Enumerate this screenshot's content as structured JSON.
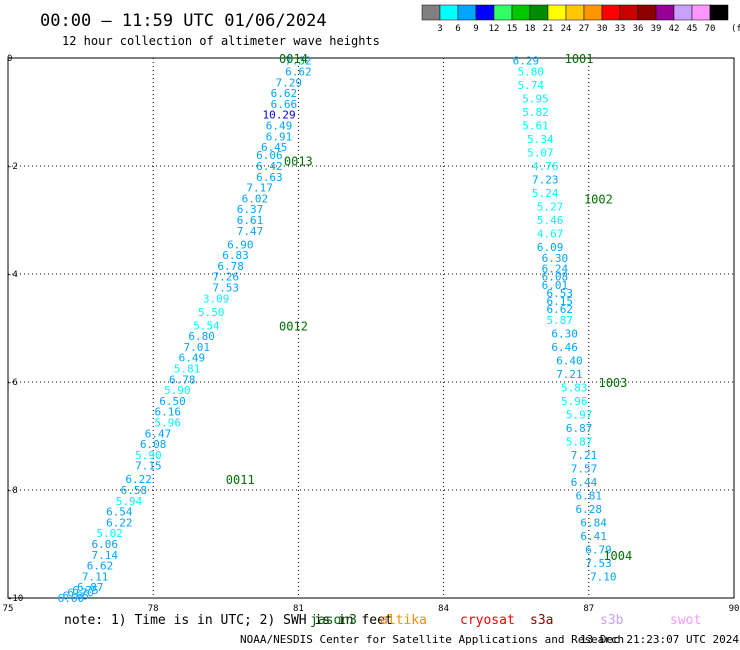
{
  "header": {
    "title": "00:00 – 11:59 UTC 01/06/2024",
    "subtitle": "12 hour collection of altimeter wave heights"
  },
  "colorbar": {
    "ticks": [
      "3",
      "6",
      "9",
      "12",
      "15",
      "18",
      "21",
      "24",
      "27",
      "30",
      "33",
      "36",
      "39",
      "42",
      "45",
      "70"
    ],
    "unit": "(ft)",
    "colors": [
      "#808080",
      "#00ffff",
      "#00a5ff",
      "#0000ff",
      "#32ff64",
      "#00c800",
      "#008c00",
      "#ffff00",
      "#ffc800",
      "#ff9600",
      "#ff0000",
      "#c80000",
      "#8c0000",
      "#960096",
      "#c8a0ff",
      "#ff96ff",
      "#000000"
    ]
  },
  "note": "note: 1) Time is in UTC; 2) SWH is in feet",
  "missions": [
    {
      "name": "jason3",
      "color": "#006400"
    },
    {
      "name": "altika",
      "color": "#ff8c00"
    },
    {
      "name": "cryosat",
      "color": "#ff0000"
    },
    {
      "name": "s3a",
      "color": "#8b0000"
    },
    {
      "name": "s3b",
      "color": "#c8a0ff"
    },
    {
      "name": "swot",
      "color": "#ff96ff"
    }
  ],
  "footer": {
    "credit": "NOAA/NESDIS Center for Satellite Applications and Research",
    "timestamp": "13 Dec 21:23:07 UTC 2024"
  },
  "chart_data": {
    "type": "scatter",
    "xlim": [
      75,
      90
    ],
    "ylim": [
      -10,
      0
    ],
    "x_ticks": [
      "75",
      "78",
      "81",
      "84",
      "87",
      "90"
    ],
    "y_ticks": [
      "0",
      "-2",
      "-4",
      "-6",
      "-8",
      "-10"
    ],
    "grid": true,
    "passes": [
      {
        "label": "0014",
        "x": 80.6,
        "y": 0.0,
        "color": "#00a000"
      },
      {
        "label": "0013",
        "x": 80.7,
        "y": -1.9,
        "color": "#00a000"
      },
      {
        "label": "0012",
        "x": 80.6,
        "y": -4.95,
        "color": "#00a000"
      },
      {
        "label": "0011",
        "x": 79.5,
        "y": -7.8,
        "color": "#00a000"
      },
      {
        "label": "1001",
        "x": 86.5,
        "y": 0.0,
        "color": "#ff80ff"
      },
      {
        "label": "1002",
        "x": 86.9,
        "y": -2.6,
        "color": "#ff80ff"
      },
      {
        "label": "1003",
        "x": 87.2,
        "y": -6.0,
        "color": "#ff80ff"
      },
      {
        "label": "1004",
        "x": 87.3,
        "y": -9.2,
        "color": "#ff80ff"
      }
    ],
    "series": [
      {
        "name": "jason3",
        "x": [
          81.0,
          81.0,
          80.8,
          80.7,
          80.7,
          80.6,
          80.6,
          80.6,
          80.5,
          80.4,
          80.4,
          80.4,
          80.2,
          80.1,
          80.0,
          80.0,
          80.0,
          79.8,
          79.7,
          79.6,
          79.5,
          79.5,
          79.3,
          79.2,
          79.1,
          79.0,
          78.9,
          78.8,
          78.7,
          78.6,
          78.5,
          78.4,
          78.3,
          78.3,
          78.1,
          78.0,
          77.9,
          77.9,
          77.7,
          77.6,
          77.5,
          77.3,
          77.3,
          77.1,
          77.0,
          77.0,
          76.9,
          76.8,
          76.7,
          76.6,
          76.5,
          76.4,
          76.3
        ],
        "y": [
          -0.05,
          -0.25,
          -0.45,
          -0.65,
          -0.85,
          -1.05,
          -1.25,
          -1.45,
          -1.65,
          -1.8,
          -2.0,
          -2.2,
          -2.4,
          -2.6,
          -2.8,
          -3.0,
          -3.2,
          -3.45,
          -3.65,
          -3.85,
          -4.05,
          -4.25,
          -4.45,
          -4.7,
          -4.95,
          -5.15,
          -5.35,
          -5.55,
          -5.75,
          -5.95,
          -6.15,
          -6.35,
          -6.55,
          -6.75,
          -6.95,
          -7.15,
          -7.35,
          -7.55,
          -7.8,
          -8.0,
          -8.2,
          -8.4,
          -8.6,
          -8.8,
          -9.0,
          -9.2,
          -9.4,
          -9.6,
          -9.8,
          -9.85,
          -9.9,
          -9.95,
          -10.0
        ],
        "values": [
          7.32,
          6.62,
          7.29,
          6.62,
          6.66,
          10.29,
          6.49,
          6.91,
          6.45,
          6.06,
          6.42,
          6.63,
          7.17,
          6.02,
          6.37,
          6.61,
          7.47,
          6.9,
          6.83,
          6.78,
          7.26,
          7.53,
          3.09,
          5.5,
          5.54,
          6.8,
          7.01,
          6.49,
          5.81,
          6.78,
          5.9,
          6.5,
          6.16,
          5.96,
          6.47,
          6.08,
          5.9,
          7.15,
          6.22,
          6.58,
          5.94,
          6.54,
          6.22,
          5.02,
          6.06,
          7.14,
          6.62,
          7.11,
          6.87,
          6.75,
          6.7,
          6.65,
          6.6
        ]
      },
      {
        "name": "swot",
        "x": [
          85.7,
          85.8,
          85.8,
          85.9,
          85.9,
          85.9,
          86.0,
          86.0,
          86.1,
          86.1,
          86.1,
          86.2,
          86.2,
          86.2,
          86.2,
          86.3,
          86.3,
          86.3,
          86.3,
          86.4,
          86.4,
          86.4,
          86.4,
          86.5,
          86.5,
          86.6,
          86.6,
          86.7,
          86.7,
          86.8,
          86.8,
          86.8,
          86.9,
          86.9,
          86.9,
          87.0,
          87.0,
          87.1,
          87.1,
          87.2,
          87.2,
          87.3
        ],
        "y": [
          -0.05,
          -0.25,
          -0.5,
          -0.75,
          -1.0,
          -1.25,
          -1.5,
          -1.75,
          -2.0,
          -2.25,
          -2.5,
          -2.75,
          -3.0,
          -3.25,
          -3.5,
          -3.7,
          -3.9,
          -4.05,
          -4.2,
          -4.35,
          -4.5,
          -4.65,
          -4.85,
          -5.1,
          -5.35,
          -5.6,
          -5.85,
          -6.1,
          -6.35,
          -6.6,
          -6.85,
          -7.1,
          -7.35,
          -7.6,
          -7.85,
          -8.1,
          -8.35,
          -8.6,
          -8.85,
          -9.1,
          -9.35,
          -9.6
        ],
        "values": [
          6.29,
          5.8,
          5.74,
          5.95,
          5.82,
          5.61,
          5.34,
          5.07,
          4.76,
          7.23,
          5.24,
          5.27,
          5.46,
          4.67,
          6.09,
          6.3,
          6.24,
          6.08,
          6.01,
          6.53,
          6.15,
          6.62,
          5.87,
          6.3,
          6.46,
          6.4,
          7.21,
          5.83,
          5.96,
          5.97,
          6.87,
          5.87,
          7.21,
          7.57,
          6.44,
          6.81,
          6.28,
          6.84,
          6.41,
          6.79,
          7.53,
          7.1
        ]
      }
    ]
  }
}
